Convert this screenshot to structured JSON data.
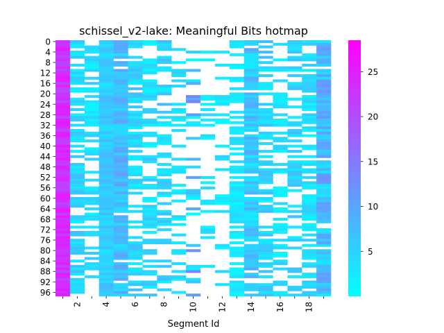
{
  "chart_data": {
    "type": "heatmap",
    "title": "schissel_v2-lake: Meaningful Bits hotmap",
    "xlabel": "Segment Id",
    "ylabel": "",
    "n_rows": 98,
    "n_cols": 19,
    "x_tick_labels": [
      "2",
      "4",
      "6",
      "8",
      "10",
      "12",
      "14",
      "16",
      "18"
    ],
    "y_tick_labels": [
      "0",
      "4",
      "8",
      "12",
      "16",
      "20",
      "24",
      "28",
      "32",
      "36",
      "40",
      "44",
      "48",
      "52",
      "56",
      "60",
      "64",
      "68",
      "72",
      "76",
      "80",
      "84",
      "88",
      "92",
      "96"
    ],
    "colorbar": {
      "min": 0,
      "max": 28.5,
      "ticks": [
        "5",
        "10",
        "15",
        "20",
        "25"
      ],
      "colors": [
        "#00ffff",
        "#ff00ff"
      ]
    },
    "missing_color": "#ffffff",
    "column_profiles": [
      {
        "mean": 23.0,
        "spread": 3.0,
        "fill": 1.0
      },
      {
        "mean": 4.5,
        "spread": 3.0,
        "fill": 0.62
      },
      {
        "mean": 3.5,
        "spread": 2.5,
        "fill": 0.48
      },
      {
        "mean": 5.5,
        "spread": 2.5,
        "fill": 1.0
      },
      {
        "mean": 7.0,
        "spread": 3.5,
        "fill": 0.93
      },
      {
        "mean": 4.5,
        "spread": 3.0,
        "fill": 0.7
      },
      {
        "mean": 4.0,
        "spread": 3.0,
        "fill": 0.58
      },
      {
        "mean": 4.5,
        "spread": 3.0,
        "fill": 0.52
      },
      {
        "mean": 3.0,
        "spread": 2.0,
        "fill": 0.35
      },
      {
        "mean": 7.0,
        "spread": 7.0,
        "fill": 0.28
      },
      {
        "mean": 2.5,
        "spread": 2.0,
        "fill": 0.22
      },
      {
        "mean": 2.5,
        "spread": 2.0,
        "fill": 0.22
      },
      {
        "mean": 2.5,
        "spread": 2.0,
        "fill": 0.58
      },
      {
        "mean": 6.0,
        "spread": 4.0,
        "fill": 0.9
      },
      {
        "mean": 4.5,
        "spread": 3.0,
        "fill": 0.72
      },
      {
        "mean": 3.0,
        "spread": 2.0,
        "fill": 0.45
      },
      {
        "mean": 4.5,
        "spread": 3.0,
        "fill": 0.45
      },
      {
        "mean": 3.5,
        "spread": 2.5,
        "fill": 0.62
      },
      {
        "mean": 7.5,
        "spread": 5.0,
        "fill": 0.92
      }
    ]
  }
}
